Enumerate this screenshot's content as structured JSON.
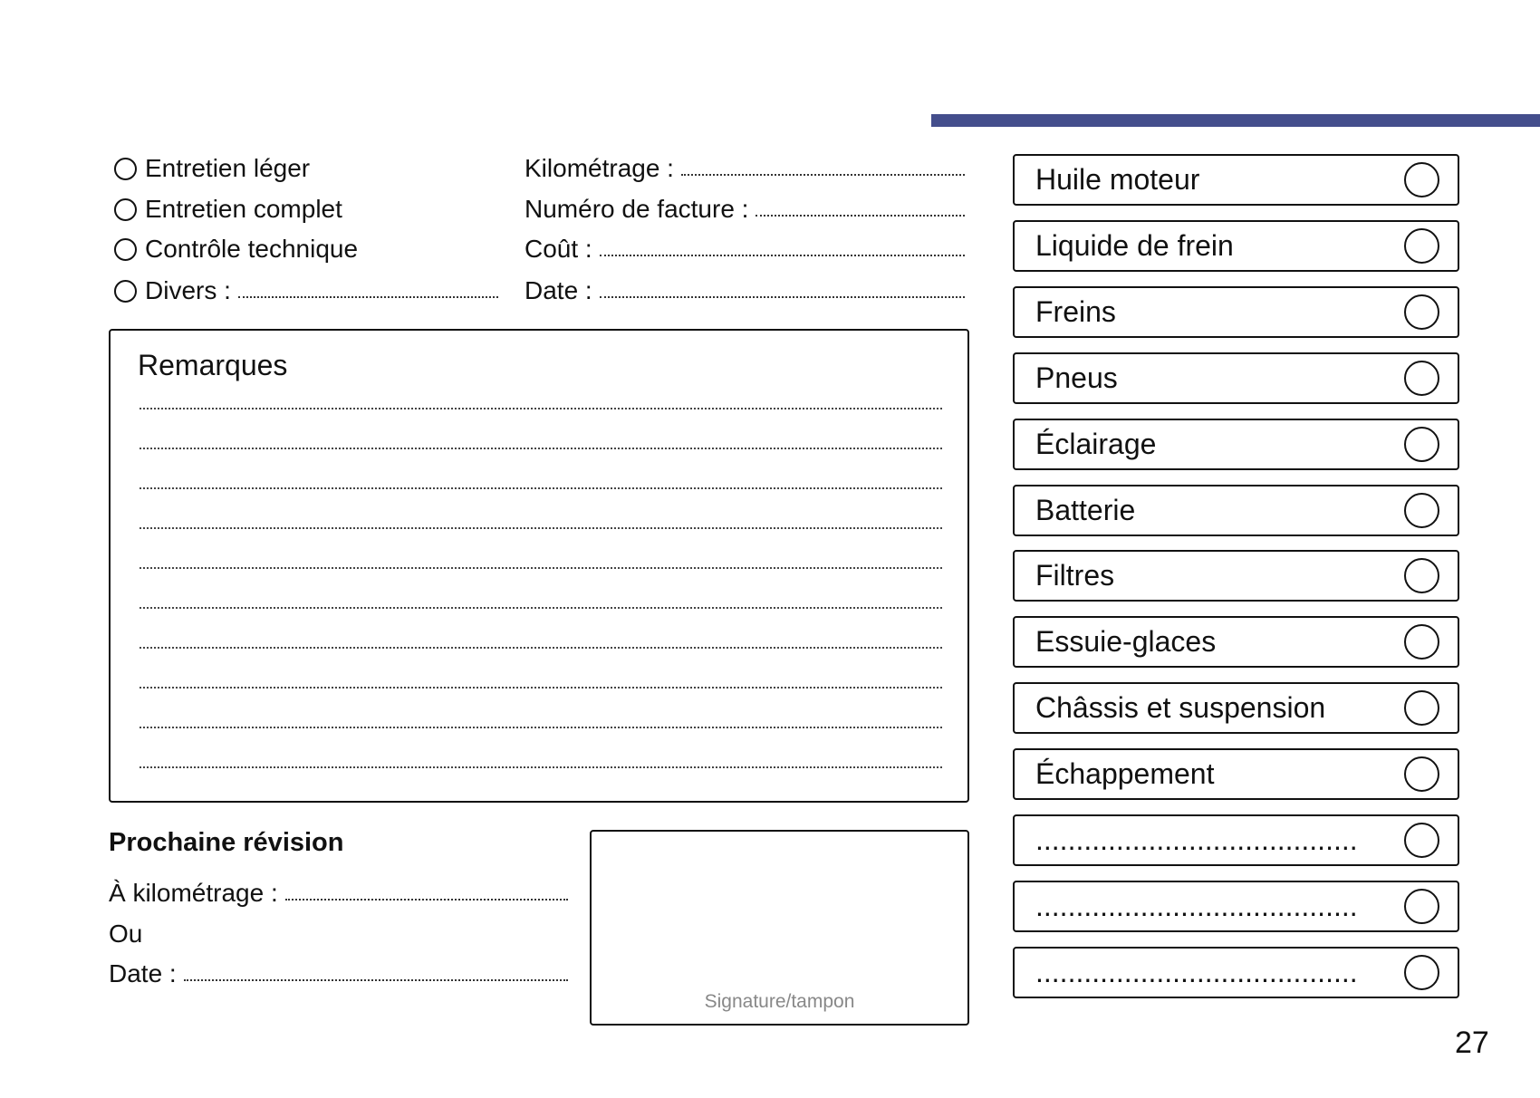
{
  "accent_color": "#444e8c",
  "service_types": [
    {
      "label": "Entretien léger"
    },
    {
      "label": "Entretien complet"
    },
    {
      "label": "Contrôle technique"
    },
    {
      "label": "Divers :"
    }
  ],
  "fields": [
    {
      "label": "Kilométrage :"
    },
    {
      "label": "Numéro de facture :"
    },
    {
      "label": "Coût :"
    },
    {
      "label": "Date :"
    }
  ],
  "remarks": {
    "title": "Remarques"
  },
  "next_service": {
    "title": "Prochaine révision",
    "mileage_label": "À kilométrage :",
    "or_label": "Ou",
    "date_label": "Date :"
  },
  "signature": {
    "label": "Signature/tampon"
  },
  "checklist": [
    {
      "label": "Huile moteur"
    },
    {
      "label": "Liquide de frein"
    },
    {
      "label": "Freins"
    },
    {
      "label": "Pneus"
    },
    {
      "label": "Éclairage"
    },
    {
      "label": "Batterie"
    },
    {
      "label": "Filtres"
    },
    {
      "label": "Essuie-glaces"
    },
    {
      "label": "Châssis et suspension"
    },
    {
      "label": "Échappement"
    },
    {
      "label": "........................................"
    },
    {
      "label": "........................................"
    },
    {
      "label": "........................................"
    }
  ],
  "page_number": "27"
}
